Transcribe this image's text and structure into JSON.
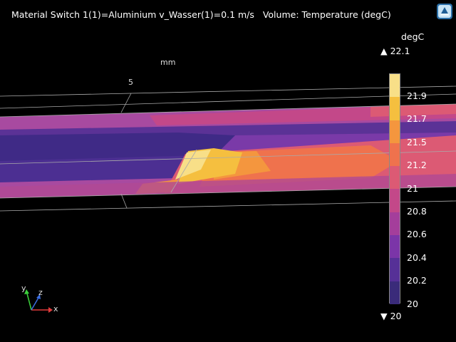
{
  "header": {
    "title": "Material Switch 1(1)=Aluminium v_Wasser(1)=0.1 m/s   Volume: Temperature (degC)"
  },
  "axis": {
    "unit_label": "mm",
    "tick_label": "5"
  },
  "colorbar": {
    "unit": "degC",
    "max_label": "22.1",
    "min_label": "20",
    "tick_labels": [
      "21.9",
      "21.7",
      "21.5",
      "21.2",
      "21",
      "20.8",
      "20.6",
      "20.4",
      "20.2",
      "20"
    ],
    "colors": [
      "#f8df88",
      "#f5bf3f",
      "#f4963e",
      "#ef724d",
      "#dc5a74",
      "#c34889",
      "#a43e9b",
      "#7b35a8",
      "#563097",
      "#3a2b7a"
    ]
  },
  "triad": {
    "x_label": "x",
    "y_label": "y",
    "z_label": "z"
  }
}
